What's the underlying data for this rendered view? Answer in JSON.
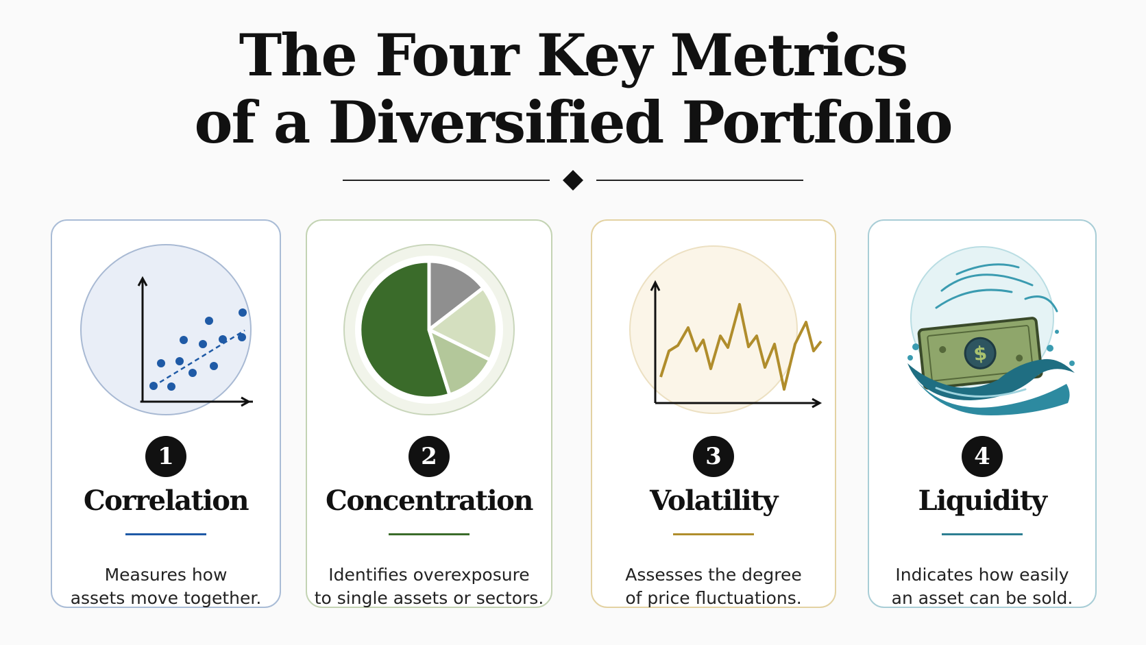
{
  "title": {
    "line1": "The Four Key Metrics",
    "line2": "of a Diversified Portfolio"
  },
  "colors": {
    "correlation": "#1f5aa6",
    "concentration": "#3a6b2a",
    "volatility": "#b08d2c",
    "liquidity": "#2d7f92"
  },
  "cards": [
    {
      "number": "1",
      "name": "Correlation",
      "desc_line1": "Measures how",
      "desc_line2": "assets move together.",
      "icon": "scatter-plot-icon"
    },
    {
      "number": "2",
      "name": "Concentration",
      "desc_line1": "Identifies overexposure",
      "desc_line2": "to single assets or sectors.",
      "icon": "pie-chart-icon"
    },
    {
      "number": "3",
      "name": "Volatility",
      "desc_line1": "Assesses the degree",
      "desc_line2": "of price fluctuations.",
      "icon": "fluctuating-line-icon"
    },
    {
      "number": "4",
      "name": "Liquidity",
      "desc_line1": "Indicates how easily",
      "desc_line2": "an asset can be sold.",
      "icon": "money-wave-icon"
    }
  ]
}
